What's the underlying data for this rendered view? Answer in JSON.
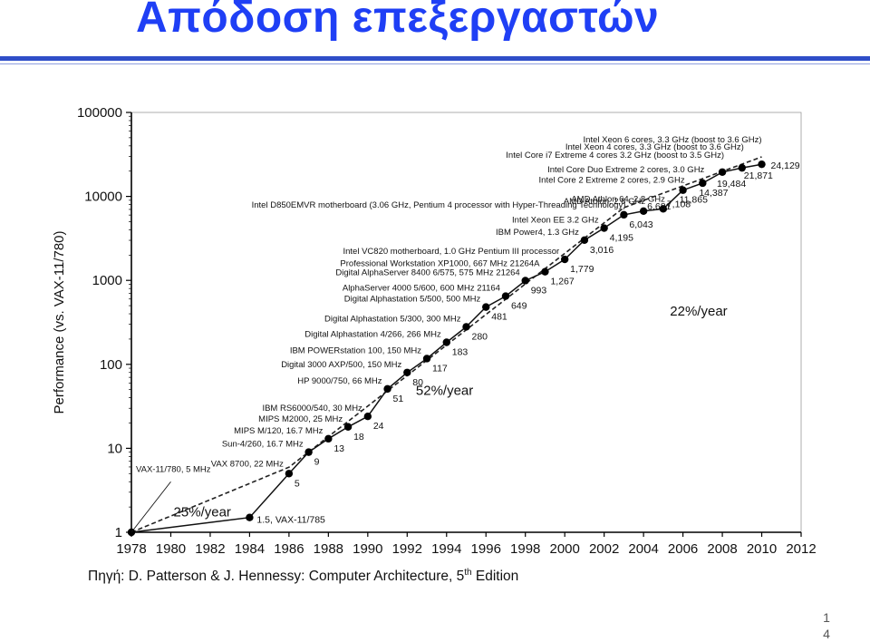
{
  "slide": {
    "title": "Απόδοση επεξεργαστών",
    "source_prefix": "Πηγή: D. Patterson & J. Hennessy: Computer Architecture, 5",
    "source_sup": "th",
    "source_suffix": " Edition",
    "page_number": "14"
  },
  "chart_data": {
    "type": "line",
    "ylabel": "Performance (vs. VAX-11/780)",
    "xlabel": "",
    "yscale": "log",
    "ylim": [
      1,
      100000
    ],
    "xlim": [
      1978,
      2012
    ],
    "x_ticks": [
      "1978",
      "1980",
      "1982",
      "1984",
      "1986",
      "1988",
      "1990",
      "1992",
      "1994",
      "1996",
      "1998",
      "2000",
      "2002",
      "2004",
      "2006",
      "2008",
      "2010",
      "2012"
    ],
    "y_ticks": [
      "1",
      "10",
      "100",
      "1000",
      "10000",
      "100000"
    ],
    "regions": [
      {
        "label": "25%/year",
        "x_start": 1978,
        "x_end": 1986,
        "color": "#d4d4d4"
      },
      {
        "label": "52%/year",
        "x_start": 1986,
        "x_end": 2003,
        "color": "#e3e3e3"
      },
      {
        "label": "22%/year",
        "x_start": 2003,
        "x_end": 2010,
        "color": "#c4c4c4"
      }
    ],
    "points": [
      {
        "x": 1978,
        "y": 1,
        "value_label": "",
        "name": "VAX-11/780, 5 MHz"
      },
      {
        "x": 1984,
        "y": 1.5,
        "value_label": "1.5, VAX-11/785",
        "name": ""
      },
      {
        "x": 1986,
        "y": 5,
        "value_label": "5",
        "name": "VAX 8700, 22 MHz"
      },
      {
        "x": 1987,
        "y": 9,
        "value_label": "9",
        "name": "Sun-4/260, 16.7 MHz"
      },
      {
        "x": 1988,
        "y": 13,
        "value_label": "13",
        "name": "MIPS M/120, 16.7 MHz"
      },
      {
        "x": 1989,
        "y": 18,
        "value_label": "18",
        "name": "MIPS M2000, 25 MHz"
      },
      {
        "x": 1990,
        "y": 24,
        "value_label": "24",
        "name": "IBM RS6000/540, 30 MHz"
      },
      {
        "x": 1991,
        "y": 51,
        "value_label": "51",
        "name": "HP 9000/750, 66 MHz"
      },
      {
        "x": 1992,
        "y": 80,
        "value_label": "80",
        "name": "Digital 3000 AXP/500, 150 MHz"
      },
      {
        "x": 1993,
        "y": 117,
        "value_label": "117",
        "name": "IBM POWERstation 100, 150 MHz"
      },
      {
        "x": 1994,
        "y": 183,
        "value_label": "183",
        "name": "Digital Alphastation 4/266, 266 MHz"
      },
      {
        "x": 1995,
        "y": 280,
        "value_label": "280",
        "name": "Digital Alphastation 5/300, 300 MHz"
      },
      {
        "x": 1996,
        "y": 481,
        "value_label": "481",
        "name": "Digital Alphastation 5/500, 500 MHz"
      },
      {
        "x": 1997,
        "y": 649,
        "value_label": "649",
        "name": "AlphaServer 4000 5/600, 600 MHz 21164"
      },
      {
        "x": 1998,
        "y": 993,
        "value_label": "993",
        "name": "Digital AlphaServer 8400 6/575, 575 MHz 21264"
      },
      {
        "x": 1999,
        "y": 1267,
        "value_label": "1,267",
        "name": "Professional Workstation XP1000, 667 MHz 21264A"
      },
      {
        "x": 2000,
        "y": 1779,
        "value_label": "1,779",
        "name": "Intel VC820 motherboard, 1.0 GHz Pentium III processor"
      },
      {
        "x": 2001,
        "y": 3016,
        "value_label": "3,016",
        "name": "IBM Power4, 1.3 GHz"
      },
      {
        "x": 2002,
        "y": 4195,
        "value_label": "4,195",
        "name": "Intel Xeon EE 3.2 GHz"
      },
      {
        "x": 2003,
        "y": 6043,
        "value_label": "6,043",
        "name": "Intel D850EMVR motherboard (3.06 GHz, Pentium 4 processor with Hyper-Threading Technology)"
      },
      {
        "x": 2004,
        "y": 6681,
        "value_label": "6,681",
        "name": "AMD Athlon, 2.6 GHz"
      },
      {
        "x": 2005,
        "y": 7108,
        "value_label": "7,108",
        "name": "AMD Athlon 64, 2.8 GHz"
      },
      {
        "x": 2006,
        "y": 11865,
        "value_label": "11,865",
        "name": "Intel Core 2 Extreme 2 cores, 2.9 GHz"
      },
      {
        "x": 2007,
        "y": 14387,
        "value_label": "14,387",
        "name": "Intel Core Duo Extreme 2 cores, 3.0 GHz"
      },
      {
        "x": 2008,
        "y": 19484,
        "value_label": "19,484",
        "name": "Intel Core i7 Extreme 4 cores 3.2 GHz (boost to 3.5 GHz)"
      },
      {
        "x": 2009,
        "y": 21871,
        "value_label": "21,871",
        "name": "Intel Xeon 4 cores, 3.3 GHz (boost to 3.6 GHz)"
      },
      {
        "x": 2010,
        "y": 24129,
        "value_label": "24,129",
        "name": "Intel Xeon 6 cores, 3.3 GHz (boost to 3.6 GHz)"
      }
    ],
    "grid": false,
    "colors": {
      "line": "#111111",
      "trend": "#222222",
      "axis": "#000000"
    }
  }
}
